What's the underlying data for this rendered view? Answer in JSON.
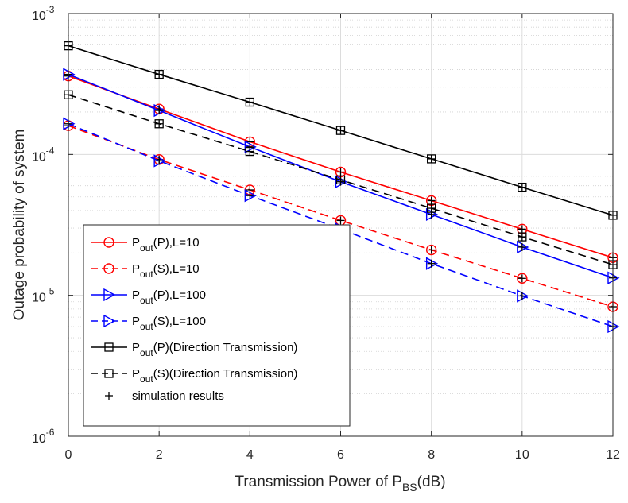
{
  "chart_data": {
    "type": "line",
    "xlabel": {
      "main": "Transmission Power of P",
      "sub": "BS",
      "tail": "(dB)"
    },
    "ylabel": "Outage probability of system",
    "x": [
      0,
      2,
      4,
      6,
      8,
      10,
      12
    ],
    "xlim": [
      0,
      12
    ],
    "xticks": [
      "0",
      "2",
      "4",
      "6",
      "8",
      "10",
      "12"
    ],
    "ylim": [
      1e-06,
      0.001
    ],
    "yscale": "log",
    "yticks": [
      {
        "base": "10",
        "exp": "-6",
        "value": 1e-06
      },
      {
        "base": "10",
        "exp": "-5",
        "value": 1e-05
      },
      {
        "base": "10",
        "exp": "-4",
        "value": 0.0001
      },
      {
        "base": "10",
        "exp": "-3",
        "value": 0.001
      }
    ],
    "grid": true,
    "legend_position": "bottom-left",
    "series": [
      {
        "name": {
          "main": "P",
          "sub": "out",
          "tail": "(P),L=10"
        },
        "color": "#ff0000",
        "dash": "solid",
        "marker": "circle",
        "values": [
          0.00036,
          0.00021,
          0.000123,
          7.5e-05,
          4.7e-05,
          2.95e-05,
          1.85e-05
        ]
      },
      {
        "name": {
          "main": "P",
          "sub": "out",
          "tail": "(S),L=10"
        },
        "color": "#ff0000",
        "dash": "dashed",
        "marker": "circle",
        "values": [
          0.00016,
          9.2e-05,
          5.6e-05,
          3.4e-05,
          2.1e-05,
          1.32e-05,
          8.3e-06
        ]
      },
      {
        "name": {
          "main": "P",
          "sub": "out",
          "tail": "(P),L=100"
        },
        "color": "#0000ff",
        "dash": "solid",
        "marker": "triangle-right",
        "values": [
          0.00037,
          0.000205,
          0.000113,
          6.4e-05,
          3.75e-05,
          2.2e-05,
          1.33e-05
        ]
      },
      {
        "name": {
          "main": "P",
          "sub": "out",
          "tail": "(S),L=100"
        },
        "color": "#0000ff",
        "dash": "dashed",
        "marker": "triangle-right",
        "values": [
          0.000165,
          9e-05,
          5.1e-05,
          2.95e-05,
          1.68e-05,
          9.9e-06,
          6e-06
        ]
      },
      {
        "name": {
          "main": "P",
          "sub": "out",
          "tail": "(P)(Direction Transmission)"
        },
        "color": "#000000",
        "dash": "solid",
        "marker": "square",
        "values": [
          0.00059,
          0.00037,
          0.000235,
          0.000148,
          9.3e-05,
          5.85e-05,
          3.7e-05
        ]
      },
      {
        "name": {
          "main": "P",
          "sub": "out",
          "tail": "(S)(Direction Transmission)"
        },
        "color": "#000000",
        "dash": "dashed",
        "marker": "square",
        "values": [
          0.000265,
          0.000165,
          0.000105,
          6.6e-05,
          4.15e-05,
          2.6e-05,
          1.65e-05
        ]
      }
    ],
    "simulation_legend": "simulation results"
  }
}
